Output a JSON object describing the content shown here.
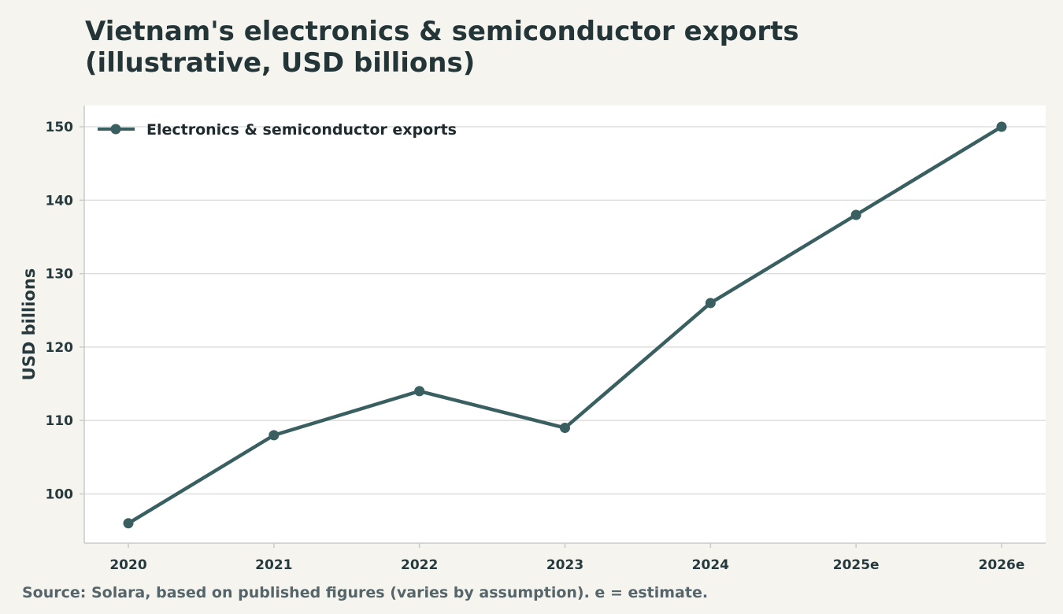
{
  "title_line1": "Vietnam's electronics & semiconductor exports",
  "title_line2": "(illustrative, USD billions)",
  "source_note": "Source: Solara, based on published figures (varies by assumption). e = estimate.",
  "chart_data": {
    "type": "line",
    "title": "Vietnam's electronics & semiconductor exports (illustrative, USD billions)",
    "xlabel": "",
    "ylabel": "USD billions",
    "categories": [
      "2020",
      "2021",
      "2022",
      "2023",
      "2024",
      "2025e",
      "2026e"
    ],
    "series": [
      {
        "name": "Electronics & semiconductor exports",
        "values": [
          96,
          108,
          114,
          109,
          126,
          138,
          150
        ],
        "color": "#3a5f60"
      }
    ],
    "yticks": [
      100,
      110,
      120,
      130,
      140,
      150
    ],
    "ylim": [
      93.3,
      152.9
    ],
    "grid": true,
    "legend": "top-left"
  },
  "colors": {
    "background": "#f5f4ef",
    "plot_background": "#ffffff",
    "gridline": "#dedfdd",
    "axis": "#c9ccca",
    "text": "#263a3e",
    "series": "#3a5f60"
  }
}
